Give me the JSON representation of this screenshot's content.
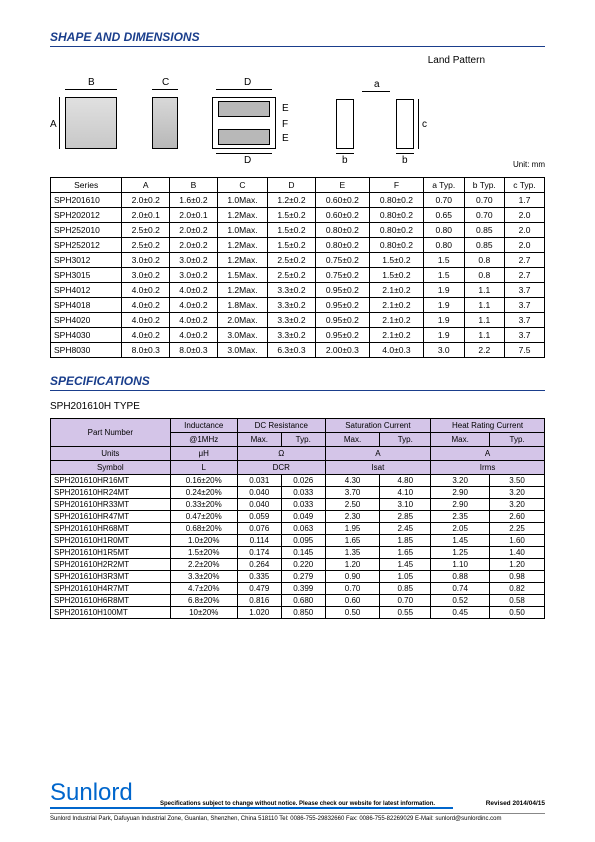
{
  "section1_title": "SHAPE AND DIMENSIONS",
  "section2_title": "SPECIFICATIONS",
  "land_pattern_label": "Land Pattern",
  "unit_label": "Unit: mm",
  "type_label": "SPH201610H TYPE",
  "dim_headers": [
    "Series",
    "A",
    "B",
    "C",
    "D",
    "E",
    "F",
    "a Typ.",
    "b Typ.",
    "c Typ."
  ],
  "dim_rows": [
    [
      "SPH201610",
      "2.0±0.2",
      "1.6±0.2",
      "1.0Max.",
      "1.2±0.2",
      "0.60±0.2",
      "0.80±0.2",
      "0.70",
      "0.70",
      "1.7"
    ],
    [
      "SPH202012",
      "2.0±0.1",
      "2.0±0.1",
      "1.2Max.",
      "1.5±0.2",
      "0.60±0.2",
      "0.80±0.2",
      "0.65",
      "0.70",
      "2.0"
    ],
    [
      "SPH252010",
      "2.5±0.2",
      "2.0±0.2",
      "1.0Max.",
      "1.5±0.2",
      "0.80±0.2",
      "0.80±0.2",
      "0.80",
      "0.85",
      "2.0"
    ],
    [
      "SPH252012",
      "2.5±0.2",
      "2.0±0.2",
      "1.2Max.",
      "1.5±0.2",
      "0.80±0.2",
      "0.80±0.2",
      "0.80",
      "0.85",
      "2.0"
    ],
    [
      "SPH3012",
      "3.0±0.2",
      "3.0±0.2",
      "1.2Max.",
      "2.5±0.2",
      "0.75±0.2",
      "1.5±0.2",
      "1.5",
      "0.8",
      "2.7"
    ],
    [
      "SPH3015",
      "3.0±0.2",
      "3.0±0.2",
      "1.5Max.",
      "2.5±0.2",
      "0.75±0.2",
      "1.5±0.2",
      "1.5",
      "0.8",
      "2.7"
    ],
    [
      "SPH4012",
      "4.0±0.2",
      "4.0±0.2",
      "1.2Max.",
      "3.3±0.2",
      "0.95±0.2",
      "2.1±0.2",
      "1.9",
      "1.1",
      "3.7"
    ],
    [
      "SPH4018",
      "4.0±0.2",
      "4.0±0.2",
      "1.8Max.",
      "3.3±0.2",
      "0.95±0.2",
      "2.1±0.2",
      "1.9",
      "1.1",
      "3.7"
    ],
    [
      "SPH4020",
      "4.0±0.2",
      "4.0±0.2",
      "2.0Max.",
      "3.3±0.2",
      "0.95±0.2",
      "2.1±0.2",
      "1.9",
      "1.1",
      "3.7"
    ],
    [
      "SPH4030",
      "4.0±0.2",
      "4.0±0.2",
      "3.0Max.",
      "3.3±0.2",
      "0.95±0.2",
      "2.1±0.2",
      "1.9",
      "1.1",
      "3.7"
    ],
    [
      "SPH8030",
      "8.0±0.3",
      "8.0±0.3",
      "3.0Max.",
      "6.3±0.3",
      "2.00±0.3",
      "4.0±0.3",
      "3.0",
      "2.2",
      "7.5"
    ]
  ],
  "spec_col_groups": [
    "Part Number",
    "Inductance",
    "DC Resistance",
    "Saturation Current",
    "Heat Rating Current"
  ],
  "spec_sub1": [
    "@1MHz",
    "Max.",
    "Typ.",
    "Max.",
    "Typ.",
    "Max.",
    "Typ."
  ],
  "spec_units_row": [
    "Units",
    "μH",
    "Ω",
    "A",
    "A"
  ],
  "spec_symbol_row": [
    "Symbol",
    "L",
    "DCR",
    "Isat",
    "Irms"
  ],
  "spec_rows": [
    [
      "SPH201610HR16MT",
      "0.16±20%",
      "0.031",
      "0.026",
      "4.30",
      "4.80",
      "3.20",
      "3.50"
    ],
    [
      "SPH201610HR24MT",
      "0.24±20%",
      "0.040",
      "0.033",
      "3.70",
      "4.10",
      "2.90",
      "3.20"
    ],
    [
      "SPH201610HR33MT",
      "0.33±20%",
      "0.040",
      "0.033",
      "2.50",
      "3.10",
      "2.90",
      "3.20"
    ],
    [
      "SPH201610HR47MT",
      "0.47±20%",
      "0.059",
      "0.049",
      "2.30",
      "2.85",
      "2.35",
      "2.60"
    ],
    [
      "SPH201610HR68MT",
      "0.68±20%",
      "0.076",
      "0.063",
      "1.95",
      "2.45",
      "2.05",
      "2.25"
    ],
    [
      "SPH201610H1R0MT",
      "1.0±20%",
      "0.114",
      "0.095",
      "1.65",
      "1.85",
      "1.45",
      "1.60"
    ],
    [
      "SPH201610H1R5MT",
      "1.5±20%",
      "0.174",
      "0.145",
      "1.35",
      "1.65",
      "1.25",
      "1.40"
    ],
    [
      "SPH201610H2R2MT",
      "2.2±20%",
      "0.264",
      "0.220",
      "1.20",
      "1.45",
      "1.10",
      "1.20"
    ],
    [
      "SPH201610H3R3MT",
      "3.3±20%",
      "0.335",
      "0.279",
      "0.90",
      "1.05",
      "0.88",
      "0.98"
    ],
    [
      "SPH201610H4R7MT",
      "4.7±20%",
      "0.479",
      "0.399",
      "0.70",
      "0.85",
      "0.74",
      "0.82"
    ],
    [
      "SPH201610H6R8MT",
      "6.8±20%",
      "0.816",
      "0.680",
      "0.60",
      "0.70",
      "0.52",
      "0.58"
    ],
    [
      "SPH201610H100MT",
      "10±20%",
      "1.020",
      "0.850",
      "0.50",
      "0.55",
      "0.45",
      "0.50"
    ]
  ],
  "brand": "Sunlord",
  "spec_notice": "Specifications subject to change without notice. Please check our website for latest information.",
  "revised": "Revised 2014/04/15",
  "addr": "Sunlord Industrial Park, Dafuyuan Industrial Zone, Guanlan, Shenzhen, China 518110 Tel: 0086-755-29832660 Fax: 0086-755-82269029 E-Mail: sunlord@sunlordinc.com",
  "diagram_labels": {
    "A": "A",
    "B": "B",
    "C": "C",
    "D": "D",
    "E": "E",
    "F": "F",
    "a": "a",
    "b": "b",
    "c": "c"
  }
}
